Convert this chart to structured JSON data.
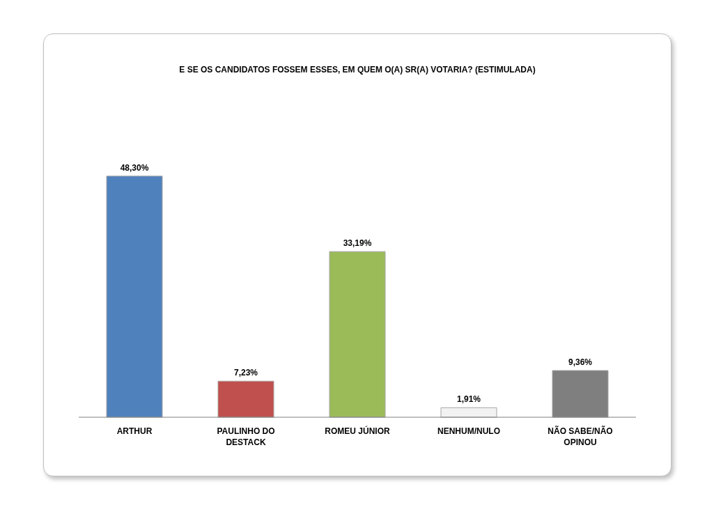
{
  "chart_data": {
    "type": "bar",
    "title": "E SE OS CANDIDATOS FOSSEM ESSES, EM QUEM O(A) SR(A) VOTARIA? (ESTIMULADA)",
    "categories": [
      "ARTHUR",
      "PAULINHO DO DESTACK",
      "ROMEU JÚNIOR",
      "NENHUM/NULO",
      "NÃO SABE/NÃO OPINOU"
    ],
    "values": [
      48.3,
      7.23,
      33.19,
      1.91,
      9.36
    ],
    "value_labels": [
      "48,30%",
      "7,23%",
      "33,19%",
      "1,91%",
      "9,36%"
    ],
    "colors": [
      "#4f81bd",
      "#c0504d",
      "#9bbb59",
      "#f2f2f2",
      "#7f7f7f"
    ],
    "grid": false,
    "legend": false
  }
}
